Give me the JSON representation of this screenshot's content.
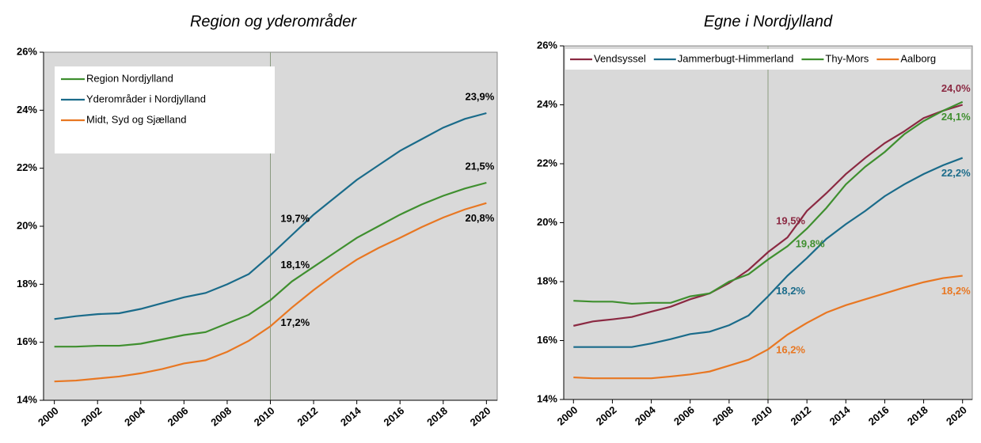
{
  "chart_data": [
    {
      "type": "line",
      "title": "Region og yderområder",
      "x": [
        2000,
        2001,
        2002,
        2003,
        2004,
        2005,
        2006,
        2007,
        2008,
        2009,
        2010,
        2011,
        2012,
        2013,
        2014,
        2015,
        2016,
        2017,
        2018,
        2019,
        2020
      ],
      "xlim": [
        1999.5,
        2020.5
      ],
      "xticks": [
        2000,
        2002,
        2004,
        2006,
        2008,
        2010,
        2012,
        2014,
        2016,
        2018,
        2020
      ],
      "vline": 2010,
      "ylim": [
        14,
        26
      ],
      "yticks": [
        {
          "value": 14,
          "label": "14%"
        },
        {
          "value": 16,
          "label": "16%"
        },
        {
          "value": 18,
          "label": "18%"
        },
        {
          "value": 20,
          "label": "20%"
        },
        {
          "value": 22,
          "label": "22%"
        },
        {
          "value": 24,
          "label": "24%"
        },
        {
          "value": 26,
          "label": "26%"
        }
      ],
      "legend": "upper left",
      "value_label_color": "#000000",
      "series": [
        {
          "name": "Region Nordjylland",
          "color": "#3f8f2f",
          "label_position": "above",
          "values": [
            15.85,
            15.85,
            15.88,
            15.88,
            15.95,
            16.1,
            16.25,
            16.35,
            16.65,
            16.95,
            17.45,
            18.1,
            18.6,
            19.1,
            19.6,
            20.0,
            20.4,
            20.75,
            21.05,
            21.3,
            21.5
          ],
          "value_labels": [
            null,
            null,
            null,
            null,
            null,
            null,
            null,
            null,
            null,
            null,
            null,
            "18,1%",
            null,
            null,
            null,
            null,
            null,
            null,
            null,
            null,
            "21,5%"
          ]
        },
        {
          "name": "Yderområder i Nordjylland",
          "color": "#1a6b8a",
          "label_position": "above",
          "values": [
            16.8,
            16.9,
            16.97,
            17.0,
            17.15,
            17.35,
            17.55,
            17.7,
            18.0,
            18.35,
            19.0,
            19.7,
            20.4,
            21.0,
            21.6,
            22.1,
            22.6,
            23.0,
            23.4,
            23.7,
            23.9
          ],
          "value_labels": [
            null,
            null,
            null,
            null,
            null,
            null,
            null,
            null,
            null,
            null,
            null,
            "19,7%",
            null,
            null,
            null,
            null,
            null,
            null,
            null,
            null,
            "23,9%"
          ]
        },
        {
          "name": "Midt, Syd og Sjælland",
          "color": "#e87722",
          "label_position": "below",
          "values": [
            14.65,
            14.68,
            14.75,
            14.82,
            14.93,
            15.08,
            15.27,
            15.38,
            15.67,
            16.05,
            16.55,
            17.2,
            17.8,
            18.35,
            18.85,
            19.25,
            19.6,
            19.97,
            20.3,
            20.58,
            20.8
          ],
          "value_labels": [
            null,
            null,
            null,
            null,
            null,
            null,
            null,
            null,
            null,
            null,
            null,
            "17,2%",
            null,
            null,
            null,
            null,
            null,
            null,
            null,
            null,
            "20,8%"
          ]
        }
      ]
    },
    {
      "type": "line",
      "title": "Egne i Nordjylland",
      "x": [
        2000,
        2001,
        2002,
        2003,
        2004,
        2005,
        2006,
        2007,
        2008,
        2009,
        2010,
        2011,
        2012,
        2013,
        2014,
        2015,
        2016,
        2017,
        2018,
        2019,
        2020
      ],
      "xlim": [
        1999.5,
        2020.5
      ],
      "xticks": [
        2000,
        2002,
        2004,
        2006,
        2008,
        2010,
        2012,
        2014,
        2016,
        2018,
        2020
      ],
      "vline": 2010,
      "ylim": [
        14,
        26
      ],
      "yticks": [
        {
          "value": 14,
          "label": "14%"
        },
        {
          "value": 16,
          "label": "16%"
        },
        {
          "value": 18,
          "label": "18%"
        },
        {
          "value": 20,
          "label": "20%"
        },
        {
          "value": 22,
          "label": "22%"
        },
        {
          "value": 24,
          "label": "24%"
        },
        {
          "value": 26,
          "label": "26%"
        }
      ],
      "legend": "top",
      "series": [
        {
          "name": "Vendsyssel",
          "color": "#8b2942",
          "label_position": "above",
          "values": [
            16.5,
            16.65,
            16.72,
            16.8,
            16.98,
            17.15,
            17.4,
            17.6,
            17.95,
            18.4,
            19.0,
            19.5,
            20.4,
            21.0,
            21.65,
            22.2,
            22.7,
            23.1,
            23.55,
            23.8,
            24.0
          ],
          "value_labels": [
            null,
            null,
            null,
            null,
            null,
            null,
            null,
            null,
            null,
            null,
            null,
            "19,5%",
            null,
            null,
            null,
            null,
            null,
            null,
            null,
            null,
            "24,0%"
          ]
        },
        {
          "name": "Jammerbugt-Himmerland",
          "color": "#1a6b8a",
          "label_position": "below",
          "values": [
            15.78,
            15.78,
            15.78,
            15.78,
            15.9,
            16.05,
            16.22,
            16.3,
            16.52,
            16.85,
            17.5,
            18.2,
            18.8,
            19.45,
            19.95,
            20.4,
            20.9,
            21.3,
            21.65,
            21.95,
            22.2
          ],
          "value_labels": [
            null,
            null,
            null,
            null,
            null,
            null,
            null,
            null,
            null,
            null,
            null,
            "18,2%",
            null,
            null,
            null,
            null,
            null,
            null,
            null,
            null,
            "22,2%"
          ]
        },
        {
          "name": "Thy-Mors",
          "color": "#3f8f2f",
          "label_position": "below",
          "values": [
            17.35,
            17.32,
            17.32,
            17.25,
            17.28,
            17.28,
            17.5,
            17.6,
            18.0,
            18.25,
            18.75,
            19.2,
            19.8,
            20.5,
            21.3,
            21.9,
            22.4,
            23.0,
            23.45,
            23.8,
            24.1
          ],
          "value_labels": [
            null,
            null,
            null,
            null,
            null,
            null,
            null,
            null,
            null,
            null,
            null,
            null,
            "19,8%",
            null,
            null,
            null,
            null,
            null,
            null,
            null,
            "24,1%"
          ]
        },
        {
          "name": "Aalborg",
          "color": "#e87722",
          "label_position": "below",
          "values": [
            14.75,
            14.72,
            14.72,
            14.72,
            14.72,
            14.78,
            14.85,
            14.95,
            15.15,
            15.35,
            15.7,
            16.2,
            16.6,
            16.95,
            17.2,
            17.4,
            17.6,
            17.8,
            17.98,
            18.12,
            18.2
          ],
          "value_labels": [
            null,
            null,
            null,
            null,
            null,
            null,
            null,
            null,
            null,
            null,
            null,
            "16,2%",
            null,
            null,
            null,
            null,
            null,
            null,
            null,
            null,
            "18,2%"
          ]
        }
      ]
    }
  ]
}
